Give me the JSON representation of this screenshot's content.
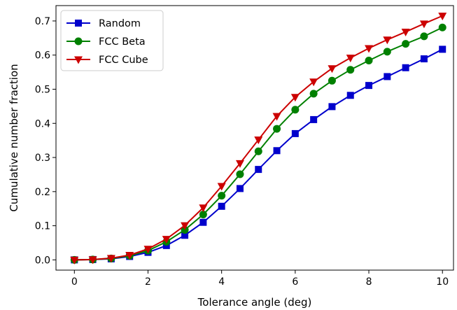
{
  "chart_data": {
    "type": "line",
    "title": "",
    "xlabel": "Tolerance angle (deg)",
    "ylabel": "Cumulative number fraction",
    "xlim": [
      -0.5,
      10.3
    ],
    "ylim": [
      -0.03,
      0.745
    ],
    "xticks": [
      0,
      2,
      4,
      6,
      8,
      10
    ],
    "yticks": [
      0.0,
      0.1,
      0.2,
      0.3,
      0.4,
      0.5,
      0.6,
      0.7
    ],
    "xtick_labels": [
      "0",
      "2",
      "4",
      "6",
      "8",
      "10"
    ],
    "ytick_labels": [
      "0.0",
      "0.1",
      "0.2",
      "0.3",
      "0.4",
      "0.5",
      "0.6",
      "0.7"
    ],
    "grid": false,
    "legend_position": "upper-left",
    "x": [
      0,
      0.5,
      1,
      1.5,
      2,
      2.5,
      3,
      3.5,
      4,
      4.5,
      5,
      5.5,
      6,
      6.5,
      7,
      7.5,
      8,
      8.5,
      9,
      9.5,
      10
    ],
    "series": [
      {
        "name": "Random",
        "color": "#0000cc",
        "marker": "square",
        "values": [
          0.0,
          0.001,
          0.003,
          0.01,
          0.022,
          0.042,
          0.072,
          0.11,
          0.157,
          0.209,
          0.265,
          0.32,
          0.37,
          0.411,
          0.449,
          0.482,
          0.511,
          0.537,
          0.563,
          0.589,
          0.617
        ]
      },
      {
        "name": "FCC Beta",
        "color": "#008000",
        "marker": "circle",
        "values": [
          0.0,
          0.001,
          0.004,
          0.012,
          0.027,
          0.053,
          0.088,
          0.133,
          0.188,
          0.251,
          0.318,
          0.384,
          0.44,
          0.487,
          0.525,
          0.557,
          0.584,
          0.61,
          0.633,
          0.655,
          0.681
        ]
      },
      {
        "name": "FCC Cube",
        "color": "#cc0000",
        "marker": "triangle-down",
        "values": [
          0.0,
          0.001,
          0.005,
          0.014,
          0.032,
          0.061,
          0.101,
          0.153,
          0.216,
          0.283,
          0.352,
          0.421,
          0.477,
          0.522,
          0.561,
          0.592,
          0.62,
          0.645,
          0.668,
          0.692,
          0.715
        ]
      }
    ]
  }
}
